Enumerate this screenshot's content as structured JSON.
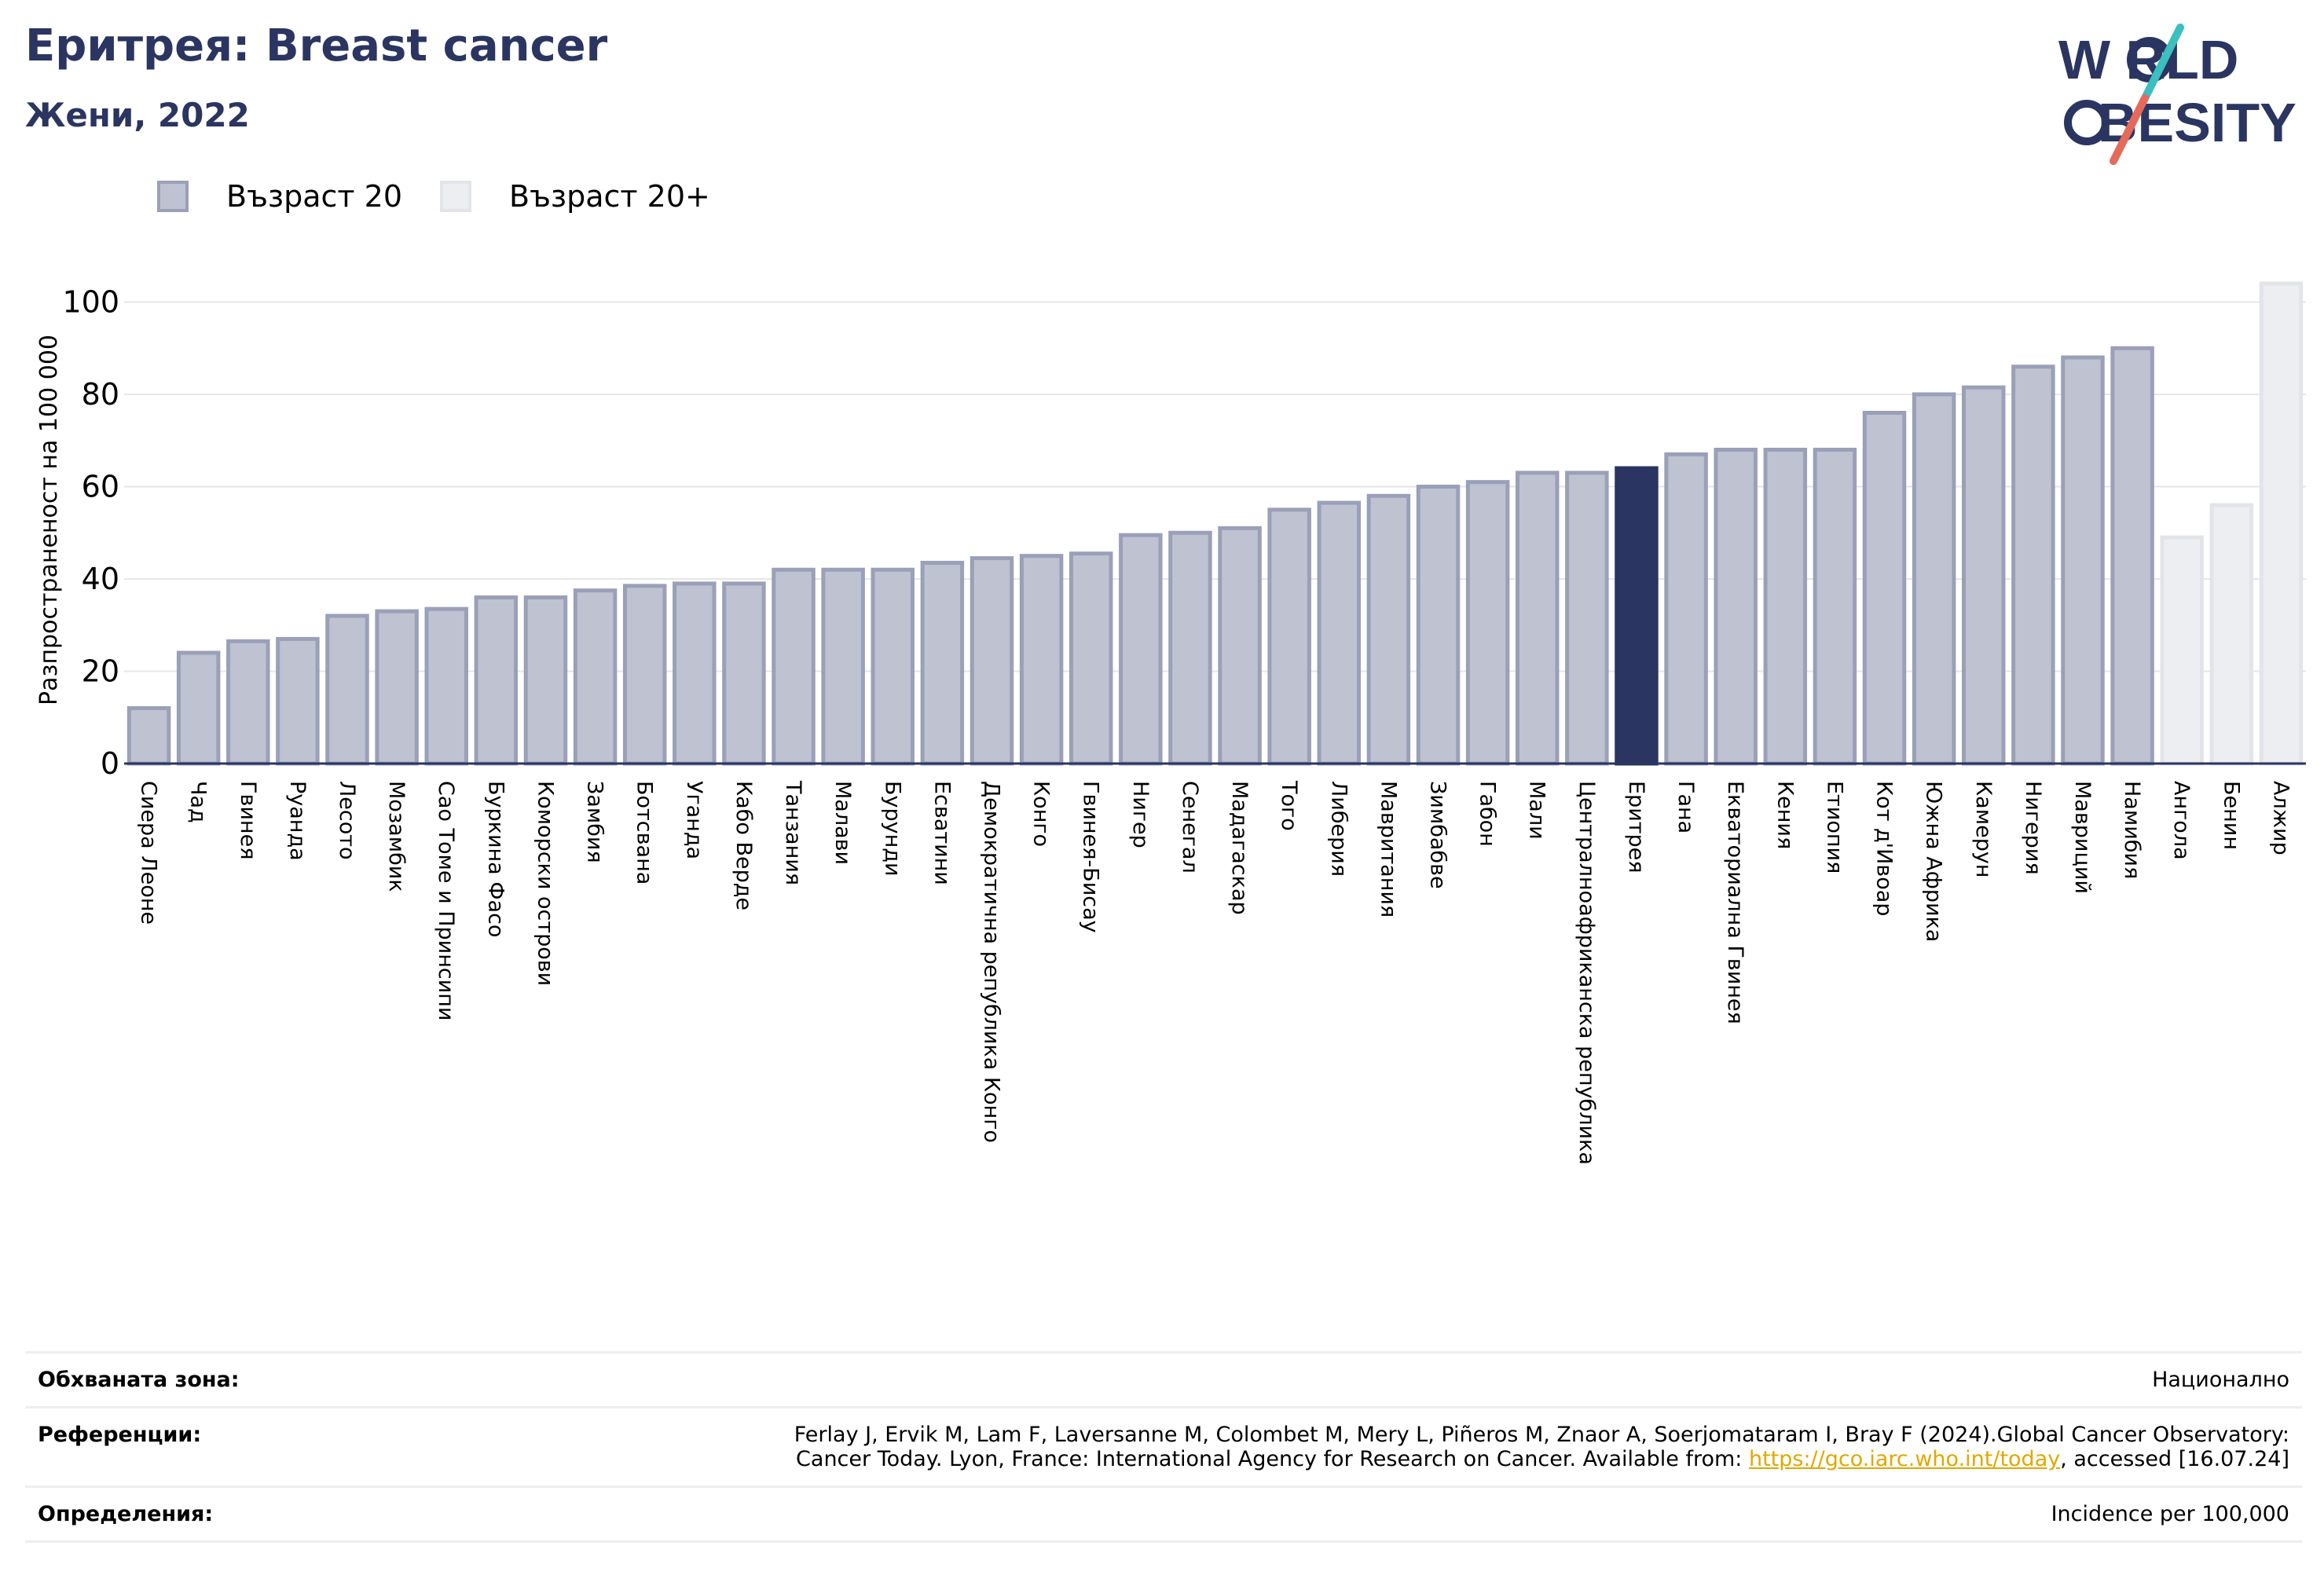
{
  "header": {
    "title": "Еритрея: Breast cancer",
    "subtitle": "Жени, 2022",
    "logo_top": "W  RLD",
    "logo_bottom": "BESITY"
  },
  "legend": {
    "items": [
      {
        "label": "Възраст 20",
        "color": "#bfc2d0",
        "border": "#9aa0b8"
      },
      {
        "label": "Възраст 20+",
        "color": "#eceef2",
        "border": "#e2e4ea"
      }
    ]
  },
  "colors": {
    "highlight": "#2b3561",
    "bar_fill": "#bfc2d0",
    "bar_border": "#9aa0b8",
    "bar_fill_plus": "#eceef2",
    "bar_border_plus": "#e2e4ea",
    "logo_teal": "#3bbfbf",
    "logo_coral": "#e56a5a",
    "logo_navy": "#2b3561"
  },
  "chart_data": {
    "type": "bar",
    "ylabel": "Разпространеност  на 100 000",
    "ylim": [
      0,
      105
    ],
    "yticks": [
      0,
      20,
      40,
      60,
      80,
      100
    ],
    "grid": true,
    "highlight": "Еритрея",
    "categories": [
      "Сиера Леоне",
      "Чад",
      "Гвинея",
      "Руанда",
      "Лесото",
      "Мозамбик",
      "Сао Томе и Принсипи",
      "Буркина Фасо",
      "Коморски острови",
      "Замбия",
      "Ботсвана",
      "Уганда",
      "Кабо Верде",
      "Танзания",
      "Малави",
      "Бурунди",
      "Есватини",
      "Демократична република Конго",
      "Конго",
      "Гвинея-Бисау",
      "Нигер",
      "Сенегал",
      "Мадагаскар",
      "Того",
      "Либерия",
      "Мавритания",
      "Зимбабве",
      "Габон",
      "Мали",
      "Централноафриканска република",
      "Еритрея",
      "Гана",
      "Екваториална Гвинея",
      "Кения",
      "Етиопия",
      "Кот д'Ивоар",
      "Южна Африка",
      "Камерун",
      "Нигерия",
      "Мавриций",
      "Намибия",
      "Ангола",
      "Бенин",
      "Алжир"
    ],
    "values": [
      12,
      24,
      26.5,
      27,
      32,
      33,
      33.5,
      36,
      36,
      37.5,
      38.5,
      39,
      39,
      42,
      42,
      42,
      43.5,
      44.5,
      45,
      45.5,
      49.5,
      50,
      51,
      55,
      56.5,
      58,
      60,
      61,
      63,
      63,
      64,
      67,
      68,
      68,
      68,
      76,
      80,
      81.5,
      86,
      88,
      90,
      49,
      56,
      104
    ],
    "series_group": [
      "20",
      "20",
      "20",
      "20",
      "20",
      "20",
      "20",
      "20",
      "20",
      "20",
      "20",
      "20",
      "20",
      "20",
      "20",
      "20",
      "20",
      "20",
      "20",
      "20",
      "20",
      "20",
      "20",
      "20",
      "20",
      "20",
      "20",
      "20",
      "20",
      "20",
      "20",
      "20",
      "20",
      "20",
      "20",
      "20",
      "20",
      "20",
      "20",
      "20",
      "20",
      "20+",
      "20+",
      "20+"
    ]
  },
  "footer": {
    "rows": [
      {
        "label": "Обхваната зона:",
        "value": "Национално"
      },
      {
        "label": "Референции:",
        "value_line1": "Ferlay J, Ervik M, Lam F, Laversanne M, Colombet M, Mery L, Piñeros M, Znaor A, Soerjomataram I, Bray F (2024).Global Cancer Observatory:",
        "value_line2_pre": "Cancer Today. Lyon, France: International Agency for Research on Cancer. Available from: ",
        "link": "https://gco.iarc.who.int/today",
        "value_line2_post": ", accessed [16.07.24]"
      },
      {
        "label": "Определения:",
        "value": "Incidence per 100,000"
      }
    ]
  }
}
